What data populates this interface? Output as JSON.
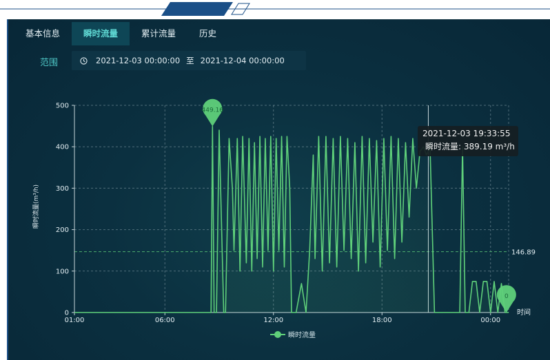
{
  "tabs": [
    {
      "label": "基本信息"
    },
    {
      "label": "瞬时流量",
      "active": true
    },
    {
      "label": "累计流量"
    },
    {
      "label": "历史"
    }
  ],
  "range": {
    "label": "范围",
    "start": "2021-12-03 00:00:00",
    "separator": "至",
    "end": "2021-12-04 00:00:00",
    "icon": "clock-icon"
  },
  "tooltip": {
    "time": "2021-12-03 19:33:55",
    "series_label": "瞬时流量:",
    "value_text": "389.19 m³/h"
  },
  "legend": {
    "label": "瞬时流量"
  },
  "colors": {
    "line": "#5fd07a",
    "accent": "#4ec7c6",
    "panel": "#0b3040"
  },
  "chart_data": {
    "type": "line",
    "ylabel": "瞬时流量(m³/h)",
    "xlabel": "时间",
    "x_tick_labels": [
      "01:00",
      "06:00",
      "12:00",
      "18:00",
      "00:00"
    ],
    "x_tick_hours": [
      1,
      6,
      12,
      18,
      24
    ],
    "xlim_hours": [
      1,
      25
    ],
    "ylim": [
      0,
      500
    ],
    "y_ticks": [
      0,
      100,
      200,
      300,
      400,
      500
    ],
    "grid": true,
    "legend_position": "bottom-center",
    "max_marker": {
      "x": 8.63,
      "y": 449.16,
      "label": "449.16"
    },
    "min_marker": {
      "x": 25,
      "y": 0,
      "label": "0"
    },
    "mark_line": {
      "value": 146.89,
      "label": "146.89"
    },
    "pointer_x": 20.56,
    "series": [
      {
        "name": "瞬时流量",
        "x": [
          1.0,
          8.55,
          8.63,
          8.72,
          8.85,
          9.0,
          9.25,
          9.35,
          9.55,
          9.73,
          9.82,
          10.0,
          10.15,
          10.3,
          10.5,
          10.65,
          10.8,
          10.95,
          11.1,
          11.25,
          11.4,
          11.55,
          11.7,
          11.85,
          12.0,
          12.15,
          12.3,
          12.45,
          12.6,
          12.75,
          12.9,
          13.0,
          13.25,
          13.55,
          13.8,
          14.0,
          14.2,
          14.3,
          14.5,
          14.7,
          14.9,
          15.1,
          15.3,
          15.5,
          15.7,
          15.9,
          16.1,
          16.3,
          16.5,
          16.7,
          16.9,
          17.1,
          17.3,
          17.5,
          17.7,
          17.9,
          18.1,
          18.3,
          18.5,
          18.7,
          18.9,
          19.1,
          19.3,
          19.5,
          19.7,
          19.9,
          20.1,
          20.3,
          20.45,
          20.56,
          20.65,
          20.9,
          22.3,
          22.45,
          22.6,
          22.8,
          23.0,
          23.2,
          23.4,
          23.6,
          23.8,
          24.0,
          24.2,
          24.4,
          24.6,
          24.8,
          25.0
        ],
        "values": [
          0,
          0,
          449,
          0,
          0,
          440,
          0,
          0,
          420,
          300,
          150,
          420,
          100,
          425,
          120,
          420,
          100,
          410,
          130,
          425,
          110,
          420,
          150,
          425,
          100,
          420,
          150,
          425,
          110,
          425,
          300,
          0,
          0,
          70,
          0,
          150,
          380,
          130,
          425,
          100,
          425,
          120,
          420,
          110,
          425,
          150,
          420,
          130,
          410,
          100,
          425,
          120,
          420,
          170,
          415,
          110,
          420,
          150,
          425,
          130,
          420,
          170,
          410,
          230,
          420,
          300,
          389,
          400,
          380,
          389,
          410,
          0,
          0,
          400,
          0,
          0,
          75,
          75,
          0,
          75,
          75,
          0,
          75,
          0,
          70,
          0,
          0
        ]
      }
    ]
  }
}
